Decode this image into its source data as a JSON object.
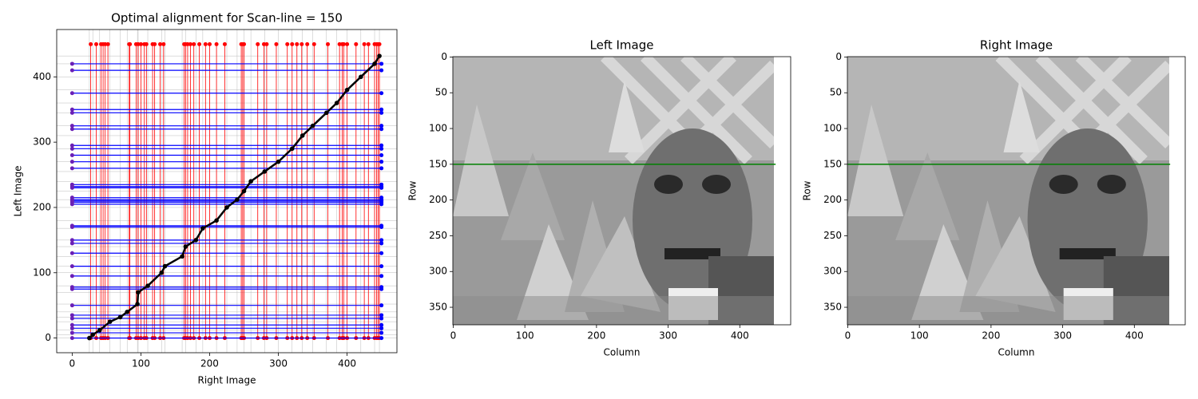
{
  "chart_data": [
    {
      "type": "alignment",
      "title": "Optimal alignment for Scan-line = 150",
      "x_label": "Right Image",
      "y_label": "Left Image",
      "xlim": [
        -22.5,
        472.5
      ],
      "ylim": [
        -22.5,
        472.5
      ],
      "xticks": [
        0,
        100,
        200,
        300,
        400
      ],
      "yticks": [
        0,
        100,
        200,
        300,
        400
      ],
      "grid": true,
      "extent": [
        0,
        450
      ],
      "path": {
        "color": "#000000",
        "x": [
          25,
          30,
          40,
          55,
          70,
          80,
          95,
          96,
          110,
          130,
          135,
          160,
          165,
          180,
          190,
          210,
          225,
          240,
          250,
          260,
          280,
          300,
          320,
          335,
          350,
          370,
          385,
          400,
          420,
          440,
          447
        ],
        "y": [
          0,
          5,
          12,
          25,
          32,
          40,
          52,
          70,
          80,
          100,
          110,
          125,
          140,
          150,
          168,
          180,
          200,
          212,
          225,
          240,
          255,
          270,
          290,
          310,
          325,
          345,
          360,
          380,
          400,
          420,
          432
        ]
      },
      "vertical": {
        "color": "#ff0000",
        "values": [
          27,
          35,
          42,
          45,
          48,
          52,
          83,
          84,
          93,
          96,
          100,
          105,
          108,
          117,
          120,
          128,
          133,
          163,
          165,
          168,
          172,
          177,
          185,
          194,
          200,
          210,
          222,
          246,
          248,
          250,
          270,
          279,
          283,
          297,
          313,
          320,
          327,
          334,
          342,
          352,
          372,
          389,
          393,
          395,
          400,
          413,
          425,
          431,
          440,
          443,
          445,
          447
        ]
      },
      "horizontal": {
        "color": "#0000ff",
        "values": [
          0,
          8,
          15,
          20,
          30,
          35,
          50,
          75,
          78,
          95,
          110,
          130,
          145,
          150,
          170,
          172,
          205,
          208,
          210,
          212,
          215,
          230,
          232,
          235,
          260,
          270,
          280,
          290,
          295,
          320,
          325,
          345,
          350,
          375,
          410,
          420
        ]
      }
    },
    {
      "type": "image",
      "title": "Left Image",
      "x_label": "Column",
      "y_label": "Row",
      "xlim": [
        -0.5,
        471
      ],
      "ylim": [
        374.5,
        -0.5
      ],
      "xticks": [
        0,
        100,
        200,
        300,
        400
      ],
      "yticks": [
        0,
        50,
        100,
        150,
        200,
        250,
        300,
        350
      ],
      "line": {
        "color": "#008000",
        "x": [
          0,
          450
        ],
        "y": [
          150,
          150
        ]
      }
    },
    {
      "type": "image",
      "title": "Right Image",
      "x_label": "Column",
      "y_label": "Row",
      "xlim": [
        -0.5,
        471
      ],
      "ylim": [
        374.5,
        -0.5
      ],
      "xticks": [
        0,
        100,
        200,
        300,
        400
      ],
      "yticks": [
        0,
        50,
        100,
        150,
        200,
        250,
        300,
        350
      ],
      "line": {
        "color": "#008000",
        "x": [
          0,
          450
        ],
        "y": [
          150,
          150
        ]
      }
    }
  ]
}
